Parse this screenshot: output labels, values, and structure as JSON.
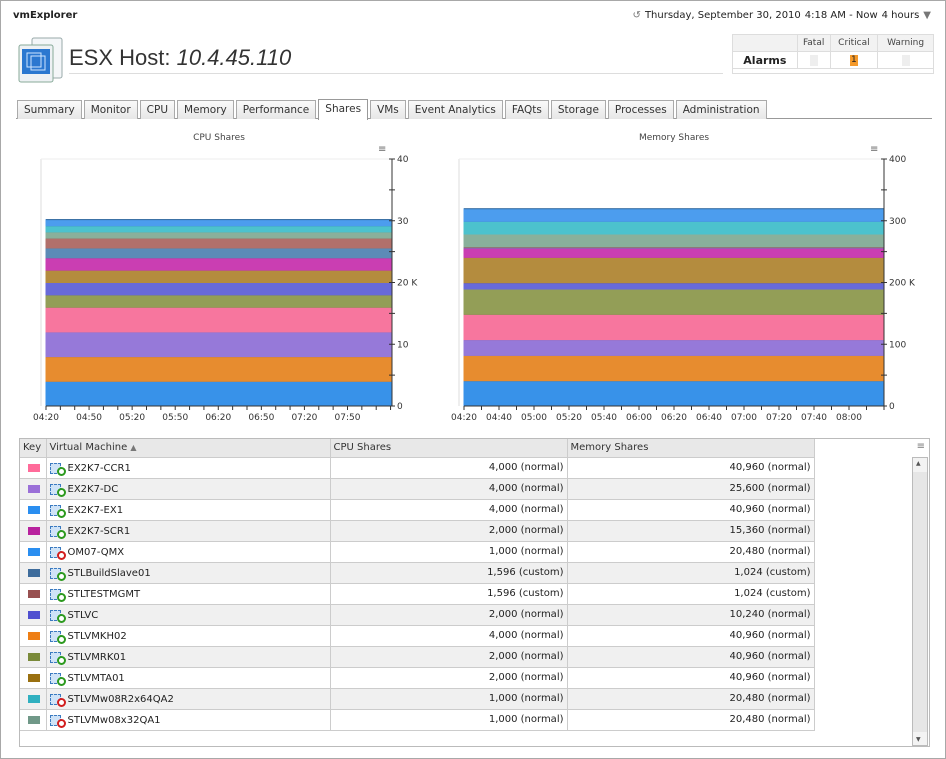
{
  "app": {
    "title": "vmExplorer"
  },
  "timebar": {
    "icon": "clock-arrow-icon",
    "date": "Thursday, September 30, 2010",
    "range": "4:18 AM - Now",
    "duration": "4 hours"
  },
  "host": {
    "label": "ESX Host:",
    "name": "10.4.45.110"
  },
  "alarms": {
    "label": "Alarms",
    "headers": [
      "Fatal",
      "Critical",
      "Warning"
    ],
    "values": [
      "",
      "1",
      ""
    ]
  },
  "tabs": [
    "Summary",
    "Monitor",
    "CPU",
    "Memory",
    "Performance",
    "Shares",
    "VMs",
    "Event Analytics",
    "FAQts",
    "Storage",
    "Processes",
    "Administration"
  ],
  "active_tab": "Shares",
  "table": {
    "headers": [
      "Key",
      "Virtual Machine",
      "CPU Shares",
      "Memory Shares"
    ],
    "sort": "Virtual Machine ascending",
    "rows": [
      {
        "color": "#ff6b9a",
        "vm": "EX2K7-CCR1",
        "state": "on",
        "cpu": "4,000 (normal)",
        "mem": "40,960 (normal)"
      },
      {
        "color": "#9b70d8",
        "vm": "EX2K7-DC",
        "state": "on",
        "cpu": "4,000 (normal)",
        "mem": "25,600 (normal)"
      },
      {
        "color": "#2a8ef0",
        "vm": "EX2K7-EX1",
        "state": "on",
        "cpu": "4,000 (normal)",
        "mem": "40,960 (normal)"
      },
      {
        "color": "#b8229e",
        "vm": "EX2K7-SCR1",
        "state": "on",
        "cpu": "2,000 (normal)",
        "mem": "15,360 (normal)"
      },
      {
        "color": "#2a8ef0",
        "vm": "OM07-QMX",
        "state": "off",
        "cpu": "1,000 (normal)",
        "mem": "20,480 (normal)"
      },
      {
        "color": "#3e6c9c",
        "vm": "STLBuildSlave01",
        "state": "on",
        "cpu": "1,596 (custom)",
        "mem": "1,024 (custom)"
      },
      {
        "color": "#985050",
        "vm": "STLTESTMGMT",
        "state": "on",
        "cpu": "1,596 (custom)",
        "mem": "1,024 (custom)"
      },
      {
        "color": "#5050d0",
        "vm": "STLVC",
        "state": "on",
        "cpu": "2,000 (normal)",
        "mem": "10,240 (normal)"
      },
      {
        "color": "#ee7e14",
        "vm": "STLVMKH02",
        "state": "on",
        "cpu": "4,000 (normal)",
        "mem": "40,960 (normal)"
      },
      {
        "color": "#7a8a3a",
        "vm": "STLVMRK01",
        "state": "on",
        "cpu": "2,000 (normal)",
        "mem": "40,960 (normal)"
      },
      {
        "color": "#9a7010",
        "vm": "STLVMTA01",
        "state": "on",
        "cpu": "2,000 (normal)",
        "mem": "40,960 (normal)"
      },
      {
        "color": "#30b0c0",
        "vm": "STLVMw08R2x64QA2",
        "state": "off",
        "cpu": "1,000 (normal)",
        "mem": "20,480 (normal)"
      },
      {
        "color": "#709888",
        "vm": "STLVMw08x32QA1",
        "state": "off",
        "cpu": "1,000 (normal)",
        "mem": "20,480 (normal)"
      }
    ]
  },
  "chart_data": [
    {
      "type": "area",
      "stacked": true,
      "title": "CPU Shares",
      "xlim": [
        "04:20",
        "08:21"
      ],
      "xticks": [
        "04:20",
        "04:50",
        "05:20",
        "05:50",
        "06:20",
        "06:50",
        "07:20",
        "07:50"
      ],
      "ylim": [
        0,
        40000
      ],
      "yticks": [
        "0",
        "10",
        "20 K",
        "30",
        "40"
      ],
      "grid": false,
      "legend": "none",
      "series": [
        {
          "name": "EX2K7-EX1",
          "value": 4000,
          "color": "#3a96f0"
        },
        {
          "name": "STLVMKH02",
          "value": 4000,
          "color": "#ee9030"
        },
        {
          "name": "EX2K7-DC",
          "value": 4000,
          "color": "#9b7de0"
        },
        {
          "name": "EX2K7-CCR1",
          "value": 4000,
          "color": "#ff7aa3"
        },
        {
          "name": "STLVMRK01",
          "value": 2000,
          "color": "#98a35a"
        },
        {
          "name": "STLVC",
          "value": 2000,
          "color": "#6b6de0"
        },
        {
          "name": "STLVMTA01",
          "value": 2000,
          "color": "#ba9040"
        },
        {
          "name": "EX2K7-SCR1",
          "value": 2000,
          "color": "#d040b8"
        },
        {
          "name": "STLBuildSlave01",
          "value": 1596,
          "color": "#5f8fbd"
        },
        {
          "name": "STLTESTMGMT",
          "value": 1596,
          "color": "#b8736e"
        },
        {
          "name": "STLVMw08x32QA1",
          "value": 1000,
          "color": "#8db5a0"
        },
        {
          "name": "STLVMw08R2x64QA2",
          "value": 1000,
          "color": "#4ec8d3"
        },
        {
          "name": "OM07-QMX",
          "value": 1000,
          "color": "#4ea2f5"
        }
      ]
    },
    {
      "type": "area",
      "stacked": true,
      "title": "Memory Shares",
      "xlim": [
        "04:20",
        "08:20"
      ],
      "xticks": [
        "04:20",
        "04:40",
        "05:00",
        "05:20",
        "05:40",
        "06:00",
        "06:20",
        "06:40",
        "07:00",
        "07:20",
        "07:40",
        "08:00"
      ],
      "ylim": [
        0,
        400000
      ],
      "yticks": [
        "0",
        "100",
        "200 K",
        "300",
        "400"
      ],
      "grid": false,
      "legend": "none",
      "series": [
        {
          "name": "EX2K7-EX1",
          "value": 40960,
          "color": "#3a96f0"
        },
        {
          "name": "STLVMKH02",
          "value": 40960,
          "color": "#ee9030"
        },
        {
          "name": "EX2K7-DC",
          "value": 25600,
          "color": "#9b7de0"
        },
        {
          "name": "EX2K7-CCR1",
          "value": 40960,
          "color": "#ff7aa3"
        },
        {
          "name": "STLVMRK01",
          "value": 40960,
          "color": "#98a35a"
        },
        {
          "name": "STLVC",
          "value": 10240,
          "color": "#6b6de0"
        },
        {
          "name": "STLVMTA01",
          "value": 40960,
          "color": "#ba9040"
        },
        {
          "name": "EX2K7-SCR1",
          "value": 15360,
          "color": "#d040b8"
        },
        {
          "name": "STLBuildSlave01",
          "value": 1024,
          "color": "#5f8fbd"
        },
        {
          "name": "STLTESTMGMT",
          "value": 1024,
          "color": "#b8736e"
        },
        {
          "name": "STLVMw08x32QA1",
          "value": 20480,
          "color": "#8db5a0"
        },
        {
          "name": "STLVMw08R2x64QA2",
          "value": 20480,
          "color": "#4ec8d3"
        },
        {
          "name": "OM07-QMX",
          "value": 20480,
          "color": "#4ea2f5"
        }
      ]
    }
  ]
}
